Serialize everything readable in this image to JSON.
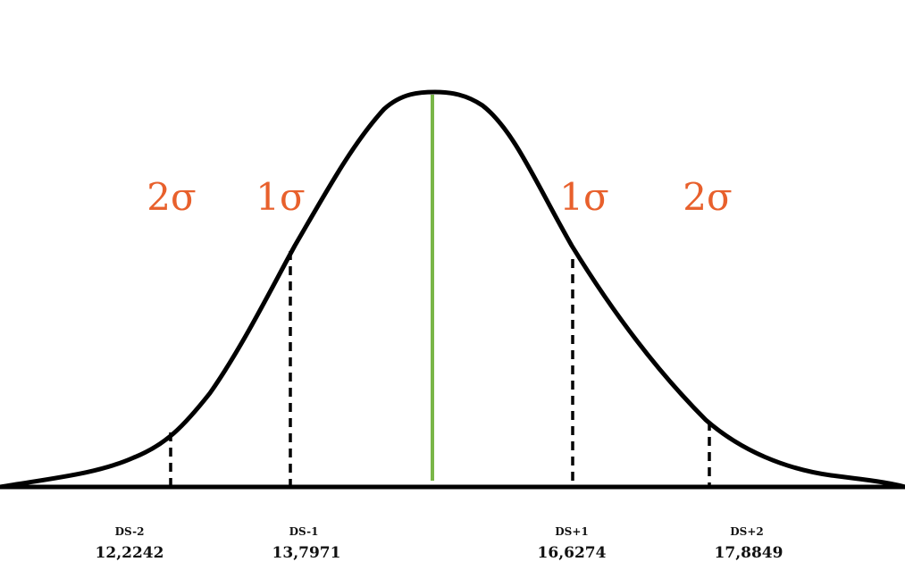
{
  "sigma_labels": {
    "left_2": "2σ",
    "left_1": "1σ",
    "right_1": "1σ",
    "right_2": "2σ"
  },
  "markers": [
    {
      "name": "DS-2",
      "value": "12,2242"
    },
    {
      "name": "DS-1",
      "value": "13,7971"
    },
    {
      "name": "DS+1",
      "value": "16,6274"
    },
    {
      "name": "DS+2",
      "value": "17,8849"
    }
  ],
  "colors": {
    "curve": "#000000",
    "mean_line": "#7ab648",
    "sigma_text": "#e8602c"
  }
}
